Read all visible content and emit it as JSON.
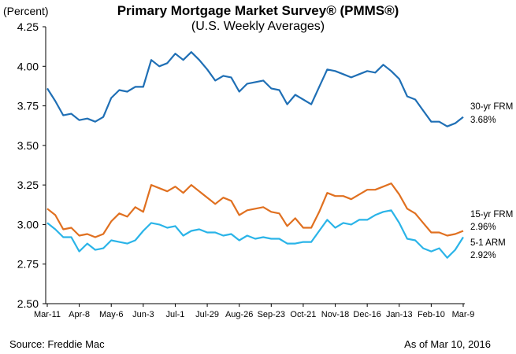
{
  "chart_data": {
    "type": "line",
    "title": "Primary Mortgage Market Survey® (PMMS®)",
    "subtitle": "(U.S. Weekly Averages)",
    "ylabel": "(Percent)",
    "ylim": [
      2.5,
      4.25
    ],
    "yticks": [
      "2.50",
      "2.75",
      "3.00",
      "3.25",
      "3.50",
      "3.75",
      "4.00",
      "4.25"
    ],
    "xtick_labels": [
      "Mar-11",
      "Apr-8",
      "May-6",
      "Jun-3",
      "Jul-1",
      "Jul-29",
      "Aug-26",
      "Sep-23",
      "Oct-21",
      "Nov-18",
      "Dec-16",
      "Jan-13",
      "Feb-10",
      "Mar-9"
    ],
    "grid": false,
    "series": [
      {
        "name": "30-yr FRM",
        "end_label": "3.68%",
        "color": "#1F6FB5",
        "values": [
          3.86,
          3.78,
          3.69,
          3.7,
          3.66,
          3.67,
          3.65,
          3.68,
          3.8,
          3.85,
          3.84,
          3.87,
          3.87,
          4.04,
          4.0,
          4.02,
          4.08,
          4.04,
          4.09,
          4.04,
          3.98,
          3.91,
          3.94,
          3.93,
          3.84,
          3.89,
          3.9,
          3.91,
          3.86,
          3.85,
          3.76,
          3.82,
          3.79,
          3.76,
          3.87,
          3.98,
          3.97,
          3.95,
          3.93,
          3.95,
          3.97,
          3.96,
          4.01,
          3.97,
          3.92,
          3.81,
          3.79,
          3.72,
          3.65,
          3.65,
          3.62,
          3.64,
          3.68
        ]
      },
      {
        "name": "15-yr FRM",
        "end_label": "2.96%",
        "color": "#E07020",
        "values": [
          3.1,
          3.06,
          2.97,
          2.98,
          2.93,
          2.94,
          2.92,
          2.94,
          3.02,
          3.07,
          3.05,
          3.11,
          3.08,
          3.25,
          3.23,
          3.21,
          3.24,
          3.2,
          3.25,
          3.21,
          3.17,
          3.13,
          3.17,
          3.15,
          3.06,
          3.09,
          3.1,
          3.11,
          3.08,
          3.07,
          2.99,
          3.04,
          2.98,
          2.98,
          3.08,
          3.2,
          3.18,
          3.18,
          3.16,
          3.19,
          3.22,
          3.22,
          3.24,
          3.26,
          3.19,
          3.1,
          3.07,
          3.01,
          2.95,
          2.95,
          2.93,
          2.94,
          2.96
        ]
      },
      {
        "name": "5-1 ARM",
        "end_label": "2.92%",
        "color": "#2AB4E8",
        "values": [
          3.01,
          2.97,
          2.92,
          2.92,
          2.83,
          2.88,
          2.84,
          2.85,
          2.9,
          2.89,
          2.88,
          2.9,
          2.96,
          3.01,
          3.0,
          2.98,
          2.99,
          2.93,
          2.96,
          2.97,
          2.95,
          2.95,
          2.93,
          2.94,
          2.9,
          2.93,
          2.91,
          2.92,
          2.91,
          2.91,
          2.88,
          2.88,
          2.89,
          2.89,
          2.96,
          3.03,
          2.98,
          3.01,
          3.0,
          3.03,
          3.03,
          3.06,
          3.08,
          3.09,
          3.01,
          2.91,
          2.9,
          2.85,
          2.83,
          2.85,
          2.79,
          2.84,
          2.92
        ]
      }
    ]
  },
  "footer": {
    "source": "Source: Freddie Mac",
    "as_of": "As of Mar 10, 2016"
  }
}
